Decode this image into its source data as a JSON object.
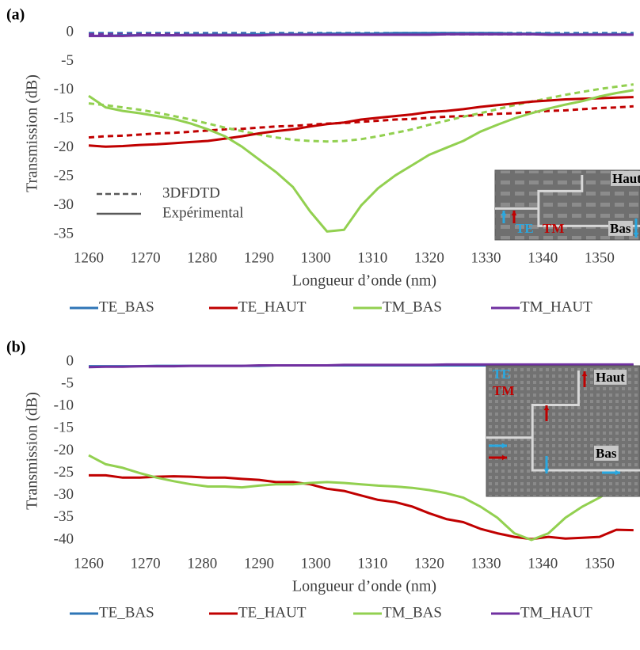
{
  "chart_data": [
    {
      "type": "line",
      "label": "(a)",
      "xlabel": "Longueur d’onde (nm)",
      "ylabel": "Transmission (dB)",
      "x": [
        1260,
        1263,
        1266,
        1269,
        1272,
        1275,
        1278,
        1281,
        1284,
        1287,
        1290,
        1293,
        1296,
        1299,
        1302,
        1305,
        1308,
        1311,
        1314,
        1317,
        1320,
        1323,
        1326,
        1329,
        1332,
        1335,
        1338,
        1341,
        1344,
        1347,
        1350,
        1353,
        1356
      ],
      "xlim": [
        1260,
        1357
      ],
      "xticks": [
        1260,
        1270,
        1280,
        1290,
        1300,
        1310,
        1320,
        1330,
        1340,
        1350
      ],
      "ylim": [
        -35,
        0
      ],
      "yticks": [
        0,
        -5,
        -10,
        -15,
        -20,
        -25,
        -30,
        -35
      ],
      "legend": "bottom",
      "line_styles": [
        "3DFDTD",
        "Expérimental"
      ],
      "series": [
        {
          "name": "TE_BAS",
          "color": "#2e75b6",
          "values": [
            -0.6,
            -0.6,
            -0.5,
            -0.5,
            -0.5,
            -0.5,
            -0.4,
            -0.4,
            -0.4,
            -0.4,
            -0.3,
            -0.3,
            -0.3,
            -0.3,
            -0.2,
            -0.2,
            -0.2,
            -0.2,
            -0.1,
            -0.1,
            -0.1,
            -0.1,
            -0.1,
            -0.1,
            -0.1,
            -0.2,
            -0.2,
            -0.2,
            -0.3,
            -0.3,
            -0.3,
            -0.3,
            -0.3
          ],
          "values_3dfdtd": [
            -0.1,
            -0.1,
            -0.1,
            -0.1,
            -0.1,
            -0.1,
            -0.1,
            -0.1,
            -0.1,
            -0.1,
            -0.1,
            -0.1,
            -0.1,
            -0.1,
            -0.1,
            -0.1,
            -0.1,
            -0.1,
            -0.1,
            -0.1,
            -0.1,
            -0.1,
            -0.1,
            -0.1,
            -0.1,
            -0.1,
            -0.1,
            -0.1,
            -0.1,
            -0.1,
            -0.1,
            -0.1,
            -0.1
          ]
        },
        {
          "name": "TE_HAUT",
          "color": "#c00000",
          "values": [
            -19.6,
            -19.8,
            -19.7,
            -19.5,
            -19.4,
            -19.2,
            -19.0,
            -18.8,
            -18.4,
            -18.0,
            -17.5,
            -17.1,
            -16.8,
            -16.3,
            -15.9,
            -15.6,
            -15.1,
            -14.8,
            -14.5,
            -14.2,
            -13.8,
            -13.6,
            -13.3,
            -12.9,
            -12.6,
            -12.3,
            -12.0,
            -11.8,
            -11.6,
            -11.5,
            -11.4,
            -11.3,
            -11.2
          ],
          "values_3dfdtd": [
            -18.2,
            -18.0,
            -17.9,
            -17.7,
            -17.5,
            -17.4,
            -17.2,
            -17.0,
            -16.8,
            -16.7,
            -16.5,
            -16.3,
            -16.2,
            -16.0,
            -15.8,
            -15.7,
            -15.5,
            -15.3,
            -15.1,
            -15.0,
            -14.8,
            -14.6,
            -14.5,
            -14.3,
            -14.1,
            -14.0,
            -13.8,
            -13.6,
            -13.5,
            -13.3,
            -13.1,
            -13.0,
            -12.8
          ]
        },
        {
          "name": "TM_BAS",
          "color": "#92d050",
          "values": [
            -11.0,
            -13.0,
            -13.6,
            -14.0,
            -14.5,
            -15.0,
            -15.8,
            -16.8,
            -18.0,
            -19.8,
            -22.0,
            -24.2,
            -26.8,
            -31.0,
            -34.5,
            -34.2,
            -30.0,
            -27.0,
            -24.8,
            -23.0,
            -21.2,
            -20.0,
            -18.8,
            -17.2,
            -16.0,
            -14.9,
            -14.0,
            -13.2,
            -12.5,
            -11.9,
            -11.1,
            -10.5,
            -10.0
          ],
          "values_3dfdtd": [
            -12.3,
            -12.6,
            -13.0,
            -13.4,
            -13.9,
            -14.5,
            -15.1,
            -15.8,
            -16.5,
            -17.1,
            -17.7,
            -18.2,
            -18.6,
            -18.8,
            -18.9,
            -18.8,
            -18.5,
            -18.0,
            -17.4,
            -16.8,
            -16.0,
            -15.3,
            -14.6,
            -14.0,
            -13.3,
            -12.6,
            -12.0,
            -11.4,
            -10.8,
            -10.3,
            -9.8,
            -9.4,
            -9.0
          ]
        },
        {
          "name": "TM_HAUT",
          "color": "#7030a0",
          "values": [
            -0.6,
            -0.6,
            -0.6,
            -0.5,
            -0.5,
            -0.5,
            -0.5,
            -0.5,
            -0.5,
            -0.5,
            -0.5,
            -0.4,
            -0.4,
            -0.4,
            -0.4,
            -0.4,
            -0.4,
            -0.4,
            -0.4,
            -0.4,
            -0.4,
            -0.3,
            -0.3,
            -0.3,
            -0.3,
            -0.3,
            -0.3,
            -0.4,
            -0.4,
            -0.4,
            -0.4,
            -0.4,
            -0.4
          ],
          "values_3dfdtd": [
            -0.3,
            -0.3,
            -0.3,
            -0.3,
            -0.3,
            -0.3,
            -0.3,
            -0.3,
            -0.3,
            -0.3,
            -0.3,
            -0.3,
            -0.3,
            -0.3,
            -0.3,
            -0.3,
            -0.3,
            -0.3,
            -0.3,
            -0.3,
            -0.3,
            -0.3,
            -0.3,
            -0.3,
            -0.3,
            -0.3,
            -0.3,
            -0.3,
            -0.3,
            -0.3,
            -0.3,
            -0.3,
            -0.3
          ]
        }
      ],
      "annotations": [
        {
          "text": "Haut",
          "color": "#000000"
        },
        {
          "text": "TE",
          "color": "#29a8e0"
        },
        {
          "text": "TM",
          "color": "#c00000"
        },
        {
          "text": "Bas",
          "color": "#000000"
        }
      ]
    },
    {
      "type": "line",
      "label": "(b)",
      "xlabel": "Longueur d’onde (nm)",
      "ylabel": "Transmission (dB)",
      "x": [
        1260,
        1263,
        1266,
        1269,
        1272,
        1275,
        1278,
        1281,
        1284,
        1287,
        1290,
        1293,
        1296,
        1299,
        1302,
        1305,
        1308,
        1311,
        1314,
        1317,
        1320,
        1323,
        1326,
        1329,
        1332,
        1335,
        1338,
        1341,
        1344,
        1347,
        1350,
        1353,
        1356
      ],
      "xlim": [
        1260,
        1357
      ],
      "xticks": [
        1260,
        1270,
        1280,
        1290,
        1300,
        1310,
        1320,
        1330,
        1340,
        1350
      ],
      "ylim": [
        -40,
        0
      ],
      "yticks": [
        0,
        -5,
        -10,
        -15,
        -20,
        -25,
        -30,
        -35,
        -40
      ],
      "legend": "bottom",
      "series": [
        {
          "name": "TE_BAS",
          "color": "#2e75b6",
          "values": [
            -1.0,
            -1.0,
            -1.0,
            -1.0,
            -0.9,
            -0.9,
            -0.9,
            -0.9,
            -0.9,
            -0.9,
            -0.9,
            -0.8,
            -0.8,
            -0.8,
            -0.8,
            -0.8,
            -0.8,
            -0.8,
            -0.8,
            -0.8,
            -0.8,
            -0.8,
            -0.8,
            -0.8,
            -0.8,
            -0.8,
            -0.8,
            -0.8,
            -0.8,
            -0.8,
            -0.8,
            -0.8,
            -0.8
          ]
        },
        {
          "name": "TE_HAUT",
          "color": "#c00000",
          "values": [
            -25.5,
            -25.5,
            -26.0,
            -26.0,
            -25.8,
            -25.7,
            -25.8,
            -26.0,
            -26.0,
            -26.3,
            -26.5,
            -27.0,
            -27.0,
            -27.5,
            -28.5,
            -29.0,
            -30.0,
            -31.0,
            -31.5,
            -32.5,
            -34.0,
            -35.3,
            -36.0,
            -37.5,
            -38.5,
            -39.3,
            -39.8,
            -39.3,
            -39.7,
            -39.5,
            -39.3,
            -37.7,
            -37.8
          ]
        },
        {
          "name": "TM_BAS",
          "color": "#92d050",
          "values": [
            -21.0,
            -23.0,
            -23.8,
            -25.0,
            -26.0,
            -26.8,
            -27.5,
            -28.0,
            -28.0,
            -28.2,
            -27.8,
            -27.5,
            -27.5,
            -27.2,
            -27.0,
            -27.2,
            -27.5,
            -27.8,
            -28.0,
            -28.3,
            -28.8,
            -29.5,
            -30.5,
            -32.5,
            -35.0,
            -38.5,
            -40.0,
            -38.5,
            -35.0,
            -32.5,
            -30.5,
            -28.0,
            -26.5
          ]
        },
        {
          "name": "TM_HAUT",
          "color": "#7030a0",
          "values": [
            -1.2,
            -1.1,
            -1.1,
            -1.0,
            -1.0,
            -1.0,
            -0.9,
            -0.9,
            -0.9,
            -0.9,
            -0.8,
            -0.8,
            -0.8,
            -0.8,
            -0.8,
            -0.7,
            -0.7,
            -0.7,
            -0.7,
            -0.7,
            -0.7,
            -0.6,
            -0.6,
            -0.6,
            -0.6,
            -0.6,
            -0.6,
            -0.6,
            -0.6,
            -0.6,
            -0.6,
            -0.6,
            -0.6
          ]
        }
      ],
      "annotations": [
        {
          "text": "TE",
          "color": "#29a8e0"
        },
        {
          "text": "TM",
          "color": "#c00000"
        },
        {
          "text": "Haut",
          "color": "#000000"
        },
        {
          "text": "Bas",
          "color": "#000000"
        }
      ]
    }
  ]
}
